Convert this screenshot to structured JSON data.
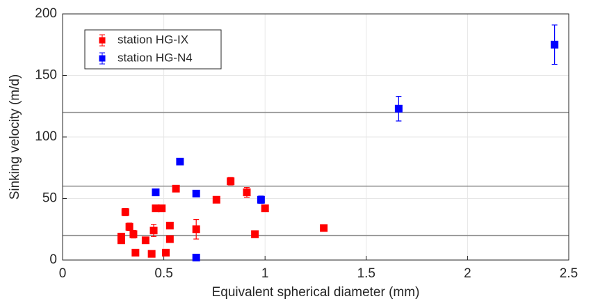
{
  "chart_data": {
    "type": "scatter",
    "xlabel": "Equivalent spherical diameter (mm)",
    "ylabel": "Sinking velocity (m/d)",
    "xlim": [
      0,
      2.5
    ],
    "ylim": [
      0,
      200
    ],
    "xticks": [
      0,
      0.5,
      1,
      1.5,
      2,
      2.5
    ],
    "yticks": [
      0,
      50,
      100,
      150,
      200
    ],
    "grid": true,
    "hlines": [
      20,
      60,
      120
    ],
    "legend": "upper left",
    "series": [
      {
        "name": "station HG-IX",
        "color": "#ff0000",
        "x": [
          0.29,
          0.29,
          0.31,
          0.33,
          0.35,
          0.36,
          0.41,
          0.44,
          0.45,
          0.46,
          0.49,
          0.51,
          0.53,
          0.53,
          0.56,
          0.66,
          0.76,
          0.83,
          0.91,
          0.95,
          1.0,
          1.29
        ],
        "values": [
          16,
          19,
          39,
          27,
          21,
          6,
          16,
          5,
          24,
          42,
          42,
          6,
          17,
          28,
          58,
          25,
          49,
          64,
          55,
          21,
          42,
          26
        ],
        "errors": [
          2,
          2,
          3,
          3,
          3,
          1,
          1,
          1,
          5,
          2,
          1,
          1,
          1,
          1,
          2,
          8,
          1,
          3,
          4,
          2,
          1,
          1
        ]
      },
      {
        "name": "station HG-N4",
        "color": "#0000ff",
        "x": [
          0.46,
          0.58,
          0.66,
          0.66,
          0.98,
          1.66,
          2.43
        ],
        "values": [
          55,
          80,
          54,
          2,
          49,
          123,
          175
        ],
        "errors": [
          1,
          1,
          2,
          1,
          3,
          10,
          16
        ]
      }
    ]
  }
}
